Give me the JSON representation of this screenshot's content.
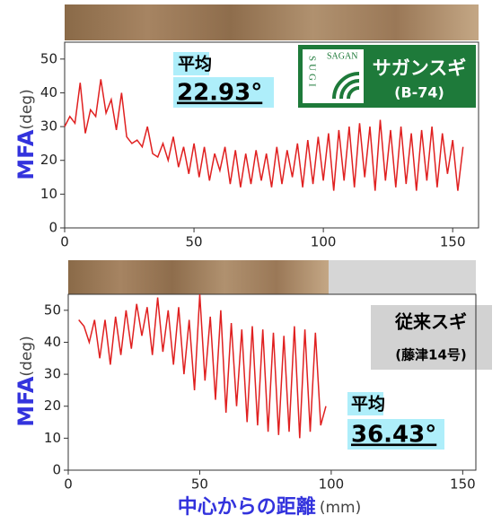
{
  "chart_data": [
    {
      "type": "line",
      "ylabel": "MFA",
      "ylabel_unit": "(deg)",
      "xlim": [
        0,
        160
      ],
      "ylim": [
        0,
        55
      ],
      "xticks": [
        0,
        50,
        100,
        150
      ],
      "yticks": [
        0,
        10,
        20,
        30,
        40,
        50
      ],
      "series": [
        {
          "color": "#e02020",
          "x": [
            0,
            2,
            4,
            6,
            8,
            10,
            12,
            14,
            16,
            18,
            20,
            22,
            24,
            26,
            28,
            30,
            32,
            34,
            36,
            38,
            40,
            42,
            44,
            46,
            48,
            50,
            52,
            54,
            56,
            58,
            60,
            62,
            64,
            66,
            68,
            70,
            72,
            74,
            76,
            78,
            80,
            82,
            84,
            86,
            88,
            90,
            92,
            94,
            96,
            98,
            100,
            102,
            104,
            106,
            108,
            110,
            112,
            114,
            116,
            118,
            120,
            122,
            124,
            126,
            128,
            130,
            132,
            134,
            136,
            138,
            140,
            142,
            144,
            146,
            148,
            150,
            152,
            154
          ],
          "values": [
            30,
            33,
            31,
            43,
            28,
            35,
            33,
            44,
            34,
            38,
            29,
            40,
            27,
            25,
            26,
            24,
            30,
            22,
            21,
            25,
            20,
            27,
            18,
            24,
            16,
            25,
            15,
            24,
            14,
            22,
            17,
            24,
            13,
            23,
            12,
            22,
            13,
            23,
            14,
            22,
            12,
            24,
            13,
            23,
            15,
            25,
            12,
            26,
            13,
            27,
            14,
            28,
            11,
            29,
            14,
            30,
            12,
            31,
            15,
            30,
            11,
            32,
            14,
            29,
            12,
            30,
            13,
            28,
            11,
            29,
            14,
            30,
            12,
            28,
            16,
            26,
            11,
            24
          ]
        }
      ],
      "mean_label": "平均",
      "mean_value": "22.93°",
      "name": "サガンスギ",
      "code": "(B-74)",
      "logo_top": "SAGAN",
      "logo_side": "SUGI"
    },
    {
      "type": "line",
      "ylabel": "MFA",
      "ylabel_unit": "(deg)",
      "xlabel": "中心からの距離",
      "xlabel_unit": "(mm)",
      "xlim": [
        0,
        155
      ],
      "ylim": [
        0,
        55
      ],
      "xticks": [
        0,
        50,
        100,
        150
      ],
      "yticks": [
        0,
        10,
        20,
        30,
        40,
        50
      ],
      "series": [
        {
          "color": "#e02020",
          "x": [
            4,
            6,
            8,
            10,
            12,
            14,
            16,
            18,
            20,
            22,
            24,
            26,
            28,
            30,
            32,
            34,
            36,
            38,
            40,
            42,
            44,
            46,
            48,
            50,
            52,
            54,
            56,
            58,
            60,
            62,
            64,
            66,
            68,
            70,
            72,
            74,
            76,
            78,
            80,
            82,
            84,
            86,
            88,
            90,
            92,
            94,
            96,
            98
          ],
          "values": [
            47,
            45,
            40,
            47,
            35,
            47,
            33,
            48,
            36,
            50,
            38,
            52,
            42,
            51,
            36,
            54,
            37,
            50,
            33,
            51,
            30,
            47,
            25,
            55,
            28,
            48,
            22,
            50,
            18,
            46,
            20,
            44,
            15,
            45,
            14,
            44,
            12,
            43,
            11,
            42,
            12,
            45,
            10,
            44,
            12,
            43,
            14,
            20
          ]
        }
      ],
      "name": "従来スギ",
      "code": "(藤津14号)",
      "mean_label": "平均",
      "mean_value": "36.43°"
    }
  ]
}
